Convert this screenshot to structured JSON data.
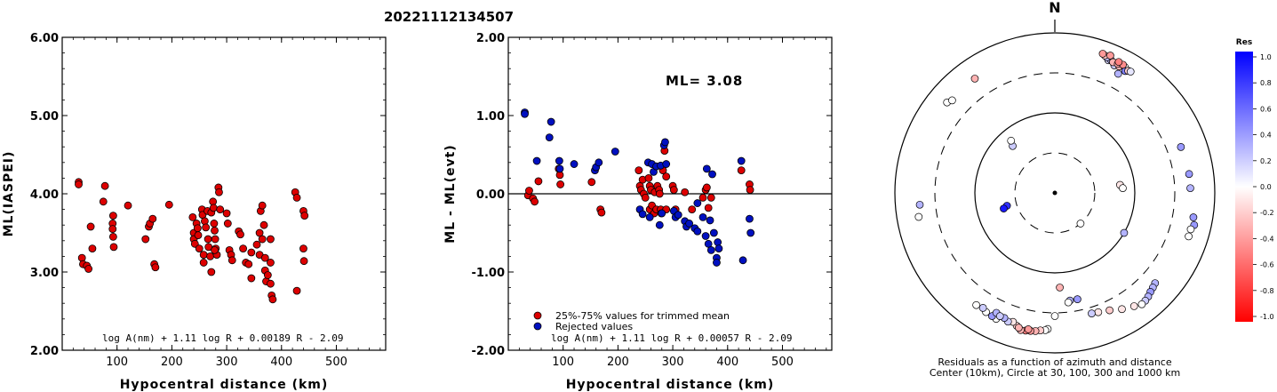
{
  "title": "20221112134507",
  "chart_data": [
    {
      "type": "scatter",
      "xlabel": "Hypocentral distance (km)",
      "ylabel": "ML(IASPEI)",
      "xlim": [
        0,
        590
      ],
      "ylim": [
        2.0,
        6.0
      ],
      "xticks": [
        "100",
        "200",
        "300",
        "400",
        "500"
      ],
      "yticks": [
        "2.00",
        "3.00",
        "4.00",
        "5.00",
        "6.00"
      ],
      "annotation": "log A(nm) + 1.11 log R + 0.00189 R - 2.09",
      "series": [
        {
          "color": "#dd0000",
          "points": [
            [
              30,
              4.15
            ],
            [
              30,
              4.12
            ],
            [
              36,
              3.18
            ],
            [
              38,
              3.1
            ],
            [
              45,
              3.08
            ],
            [
              48,
              3.04
            ],
            [
              52,
              3.58
            ],
            [
              55,
              3.3
            ],
            [
              75,
              3.9
            ],
            [
              78,
              4.1
            ],
            [
              92,
              3.62
            ],
            [
              93,
              3.72
            ],
            [
              92,
              3.55
            ],
            [
              93,
              3.45
            ],
            [
              94,
              3.32
            ],
            [
              120,
              3.85
            ],
            [
              152,
              3.42
            ],
            [
              158,
              3.58
            ],
            [
              160,
              3.62
            ],
            [
              165,
              3.68
            ],
            [
              168,
              3.1
            ],
            [
              170,
              3.06
            ],
            [
              195,
              3.86
            ],
            [
              238,
              3.7
            ],
            [
              240,
              3.5
            ],
            [
              240,
              3.42
            ],
            [
              242,
              3.36
            ],
            [
              245,
              3.62
            ],
            [
              247,
              3.56
            ],
            [
              248,
              3.47
            ],
            [
              250,
              3.3
            ],
            [
              255,
              3.8
            ],
            [
              256,
              3.73
            ],
            [
              258,
              3.22
            ],
            [
              258,
              3.12
            ],
            [
              260,
              3.65
            ],
            [
              262,
              3.57
            ],
            [
              265,
              3.78
            ],
            [
              266,
              3.42
            ],
            [
              267,
              3.32
            ],
            [
              270,
              3.2
            ],
            [
              272,
              3.76
            ],
            [
              275,
              3.9
            ],
            [
              276,
              3.82
            ],
            [
              277,
              3.62
            ],
            [
              278,
              3.53
            ],
            [
              279,
              3.42
            ],
            [
              280,
              3.3
            ],
            [
              282,
              3.22
            ],
            [
              285,
              4.08
            ],
            [
              286,
              4.02
            ],
            [
              288,
              3.8
            ],
            [
              272,
              3.0
            ],
            [
              278,
              3.28
            ],
            [
              300,
              3.75
            ],
            [
              302,
              3.62
            ],
            [
              305,
              3.28
            ],
            [
              308,
              3.22
            ],
            [
              310,
              3.15
            ],
            [
              322,
              3.52
            ],
            [
              325,
              3.48
            ],
            [
              330,
              3.3
            ],
            [
              335,
              3.12
            ],
            [
              340,
              3.1
            ],
            [
              345,
              3.25
            ],
            [
              345,
              2.92
            ],
            [
              355,
              3.35
            ],
            [
              360,
              3.5
            ],
            [
              360,
              3.22
            ],
            [
              362,
              3.78
            ],
            [
              365,
              3.85
            ],
            [
              365,
              3.42
            ],
            [
              368,
              3.6
            ],
            [
              370,
              3.18
            ],
            [
              370,
              3.02
            ],
            [
              372,
              2.88
            ],
            [
              375,
              2.96
            ],
            [
              380,
              3.42
            ],
            [
              380,
              3.12
            ],
            [
              380,
              2.85
            ],
            [
              382,
              2.7
            ],
            [
              384,
              2.65
            ],
            [
              425,
              4.02
            ],
            [
              428,
              3.95
            ],
            [
              428,
              2.76
            ],
            [
              440,
              3.78
            ],
            [
              442,
              3.72
            ],
            [
              440,
              3.3
            ],
            [
              441,
              3.14
            ]
          ]
        }
      ]
    },
    {
      "type": "scatter",
      "xlabel": "Hypocentral distance (km)",
      "ylabel": "ML - ML(evt)",
      "xlim": [
        0,
        590
      ],
      "ylim": [
        -2.0,
        2.0
      ],
      "xticks": [
        "100",
        "200",
        "300",
        "400",
        "500"
      ],
      "yticks": [
        "-2.00",
        "-1.00",
        "0.00",
        "1.00",
        "2.00"
      ],
      "ml_label": "ML= 3.08",
      "annotation": "log A(nm) + 1.11 log R + 0.00057 R - 2.09",
      "legend": [
        "25%-75% values for trimmed mean",
        "Rejected values"
      ],
      "series": [
        {
          "name": "25%-75% values for trimmed mean",
          "color": "#dd0000",
          "points": [
            [
              36,
              -0.02
            ],
            [
              38,
              0.04
            ],
            [
              45,
              -0.06
            ],
            [
              48,
              -0.1
            ],
            [
              55,
              0.16
            ],
            [
              92,
              0.32
            ],
            [
              94,
              0.24
            ],
            [
              95,
              0.12
            ],
            [
              152,
              0.15
            ],
            [
              168,
              -0.2
            ],
            [
              170,
              -0.24
            ],
            [
              238,
              0.3
            ],
            [
              240,
              0.1
            ],
            [
              242,
              0.05
            ],
            [
              245,
              0.18
            ],
            [
              247,
              0.0
            ],
            [
              250,
              -0.05
            ],
            [
              256,
              0.2
            ],
            [
              258,
              0.1
            ],
            [
              258,
              -0.2
            ],
            [
              260,
              0.05
            ],
            [
              262,
              -0.15
            ],
            [
              266,
              -0.25
            ],
            [
              267,
              0.02
            ],
            [
              270,
              -0.2
            ],
            [
              272,
              0.1
            ],
            [
              275,
              0.05
            ],
            [
              276,
              0.0
            ],
            [
              278,
              -0.2
            ],
            [
              279,
              -0.25
            ],
            [
              282,
              0.3
            ],
            [
              285,
              0.55
            ],
            [
              288,
              0.22
            ],
            [
              288,
              -0.2
            ],
            [
              300,
              0.1
            ],
            [
              302,
              0.05
            ],
            [
              305,
              -0.2
            ],
            [
              322,
              0.02
            ],
            [
              335,
              -0.2
            ],
            [
              355,
              -0.05
            ],
            [
              360,
              0.05
            ],
            [
              362,
              0.08
            ],
            [
              365,
              -0.18
            ],
            [
              370,
              -0.05
            ],
            [
              425,
              0.3
            ],
            [
              440,
              0.12
            ],
            [
              441,
              0.05
            ]
          ]
        },
        {
          "name": "Rejected values",
          "color": "#0010c0",
          "points": [
            [
              30,
              1.04
            ],
            [
              30,
              1.02
            ],
            [
              52,
              0.42
            ],
            [
              75,
              0.72
            ],
            [
              78,
              0.92
            ],
            [
              93,
              0.42
            ],
            [
              94,
              0.32
            ],
            [
              120,
              0.38
            ],
            [
              158,
              0.3
            ],
            [
              160,
              0.34
            ],
            [
              165,
              0.4
            ],
            [
              195,
              0.54
            ],
            [
              240,
              -0.2
            ],
            [
              245,
              -0.26
            ],
            [
              255,
              0.4
            ],
            [
              258,
              -0.3
            ],
            [
              262,
              0.38
            ],
            [
              265,
              0.28
            ],
            [
              270,
              0.35
            ],
            [
              276,
              -0.4
            ],
            [
              278,
              0.36
            ],
            [
              280,
              -0.25
            ],
            [
              284,
              0.62
            ],
            [
              286,
              0.66
            ],
            [
              288,
              0.38
            ],
            [
              302,
              -0.22
            ],
            [
              305,
              -0.3
            ],
            [
              310,
              -0.27
            ],
            [
              322,
              -0.35
            ],
            [
              325,
              -0.42
            ],
            [
              330,
              -0.38
            ],
            [
              340,
              -0.44
            ],
            [
              345,
              -0.12
            ],
            [
              345,
              -0.48
            ],
            [
              355,
              -0.3
            ],
            [
              360,
              -0.54
            ],
            [
              362,
              0.32
            ],
            [
              365,
              -0.64
            ],
            [
              368,
              -0.34
            ],
            [
              370,
              -0.72
            ],
            [
              372,
              0.25
            ],
            [
              375,
              -0.5
            ],
            [
              380,
              -0.82
            ],
            [
              380,
              -0.88
            ],
            [
              382,
              -0.62
            ],
            [
              384,
              -0.7
            ],
            [
              425,
              0.42
            ],
            [
              428,
              -0.85
            ],
            [
              440,
              -0.32
            ],
            [
              442,
              -0.5
            ]
          ]
        }
      ]
    },
    {
      "type": "scatter",
      "north_label": "N",
      "caption_line1": "Residuals as a function of azimuth and distance",
      "caption_line2": "Center (10km), Circle at 30, 100, 300 and 1000 km",
      "colorbar_title": "Res",
      "colorbar_ticks": [
        "1.0",
        "0.8",
        "0.6",
        "0.4",
        "0.2",
        "0.0",
        "-0.2",
        "-0.4",
        "-0.6",
        "-0.8",
        "-1.0"
      ],
      "points_azimuth_deg_distance_km": [
        [
          22,
          600,
          0.15
        ],
        [
          23,
          620,
          0.3
        ],
        [
          21,
          640,
          0.25
        ],
        [
          20,
          660,
          -0.25
        ],
        [
          19,
          680,
          -0.4
        ],
        [
          25,
          560,
          0.2
        ],
        [
          27,
          580,
          -0.3
        ],
        [
          29,
          620,
          0.0
        ],
        [
          30,
          560,
          0.5
        ],
        [
          24,
          600,
          -0.3
        ],
        [
          26,
          610,
          -0.35
        ],
        [
          28,
          640,
          -0.45
        ],
        [
          31,
          590,
          -0.2
        ],
        [
          28,
          470,
          0.3
        ],
        [
          32,
          600,
          0.1
        ],
        [
          26,
          650,
          -0.5
        ],
        [
          22,
          700,
          -0.4
        ],
        [
          -50,
          560,
          0.0
        ],
        [
          -48,
          520,
          0.0
        ],
        [
          -35,
          540,
          -0.3
        ],
        [
          -42,
          60,
          0.2
        ],
        [
          -40,
          70,
          0.0
        ],
        [
          70,
          460,
          0.4
        ],
        [
          82,
          480,
          0.4
        ],
        [
          88,
          480,
          0.3
        ],
        [
          100,
          560,
          0.4
        ],
        [
          103,
          600,
          0.4
        ],
        [
          105,
          560,
          0.0
        ],
        [
          108,
          560,
          0.0
        ],
        [
          83,
          65,
          -0.1
        ],
        [
          86,
          70,
          0.0
        ],
        [
          120,
          100,
          0.3
        ],
        [
          140,
          30,
          0.0
        ],
        [
          -105,
          40,
          0.8
        ],
        [
          -107,
          45,
          0.9
        ],
        [
          -100,
          520,
          0.0
        ],
        [
          -95,
          480,
          0.3
        ],
        [
          132,
          470,
          0.3
        ],
        [
          134,
          490,
          0.3
        ],
        [
          136,
          510,
          0.4
        ],
        [
          138,
          540,
          0.3
        ],
        [
          140,
          560,
          0.2
        ],
        [
          142,
          570,
          0.0
        ],
        [
          145,
          520,
          -0.1
        ],
        [
          150,
          460,
          -0.1
        ],
        [
          155,
          400,
          -0.2
        ],
        [
          160,
          370,
          -0.1
        ],
        [
          163,
          360,
          0.2
        ],
        [
          168,
          220,
          0.4
        ],
        [
          172,
          220,
          0.3
        ],
        [
          173,
          230,
          0.0
        ],
        [
          177,
          150,
          -0.3
        ],
        [
          180,
          330,
          0.0
        ],
        [
          183,
          490,
          0.0
        ],
        [
          184,
          510,
          0.0
        ],
        [
          186,
          520,
          -0.2
        ],
        [
          188,
          540,
          -0.3
        ],
        [
          190,
          550,
          -0.4
        ],
        [
          192,
          560,
          -0.5
        ],
        [
          194,
          570,
          -0.3
        ],
        [
          196,
          520,
          -0.2
        ],
        [
          198,
          480,
          -0.1
        ],
        [
          200,
          500,
          0.2
        ],
        [
          202,
          470,
          0.3
        ],
        [
          205,
          530,
          0.0
        ],
        [
          207,
          520,
          0.4
        ],
        [
          210,
          510,
          0.0
        ],
        [
          212,
          480,
          0.2
        ],
        [
          215,
          500,
          0.0
        ],
        [
          206,
          450,
          0.3
        ],
        [
          204,
          470,
          0.2
        ],
        [
          195,
          540,
          -0.3
        ],
        [
          191,
          530,
          -0.4
        ]
      ]
    }
  ]
}
